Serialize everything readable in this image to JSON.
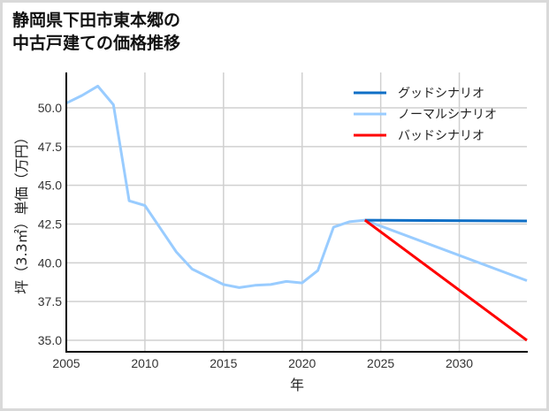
{
  "title_lines": [
    "静岡県下田市東本郷の",
    "中古戸建ての価格推移"
  ],
  "chart_data": {
    "type": "line",
    "title": "静岡県下田市東本郷の中古戸建ての価格推移",
    "xlabel": "年",
    "ylabel": "坪（3.3㎡）単価（万円）",
    "xlim": [
      2005,
      2034.3
    ],
    "ylim": [
      34.26,
      52.28
    ],
    "xticks": [
      2005,
      2010,
      2015,
      2020,
      2025,
      2030
    ],
    "yticks": [
      35.0,
      37.5,
      40.0,
      42.5,
      45.0,
      47.5,
      50.0
    ],
    "grid": true,
    "legend_position": "upper right",
    "series": [
      {
        "name": "グッドシナリオ",
        "color": "#0f6fc6",
        "x": [
          2024,
          2034.3
        ],
        "y": [
          42.75,
          42.7
        ]
      },
      {
        "name": "ノーマルシナリオ",
        "color": "#99ccff",
        "x": [
          2005,
          2006,
          2007,
          2008,
          2009,
          2010,
          2011,
          2012,
          2013,
          2014,
          2015,
          2016,
          2017,
          2018,
          2019,
          2020,
          2021,
          2022,
          2023,
          2024,
          2034.3
        ],
        "y": [
          50.3,
          50.8,
          51.4,
          50.2,
          44.0,
          43.7,
          42.2,
          40.7,
          39.6,
          39.1,
          38.6,
          38.4,
          38.55,
          38.6,
          38.8,
          38.7,
          39.5,
          42.3,
          42.65,
          42.75,
          38.85
        ]
      },
      {
        "name": "バッドシナリオ",
        "color": "#ff0000",
        "x": [
          2024,
          2034.3
        ],
        "y": [
          42.75,
          35.0
        ]
      }
    ]
  },
  "colors": {
    "grid": "#d0d0d0",
    "axis": "#000000",
    "frame": "#d9d9d9"
  }
}
